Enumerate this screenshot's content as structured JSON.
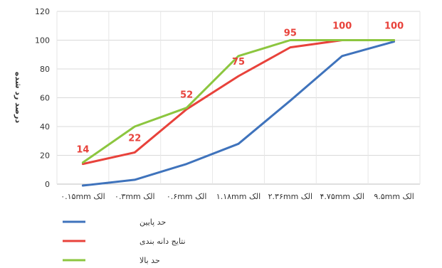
{
  "chart_data": {
    "type": "line",
    "categories": [
      "الک ۰.۱۵mm",
      "الک ۰.۳mm",
      "الک ۰.۶mm",
      "الک ۱.۱۸mm",
      "الک ۲.۳۶mm",
      "الک ۴.۷۵mm",
      "الک ۹.۵mm"
    ],
    "ylabel": "درصد رد شده",
    "ylim": [
      0,
      120
    ],
    "yticks": [
      0,
      20,
      40,
      60,
      80,
      100,
      120
    ],
    "grid": true,
    "legend_position": "bottom-left",
    "series": [
      {
        "name": "حد پایین",
        "color": "#3f73bc",
        "values": [
          -1,
          3,
          14,
          28,
          58,
          89,
          99
        ]
      },
      {
        "name": "نتایج دانه بندی",
        "color": "#e8423b",
        "values": [
          14,
          22,
          52,
          75,
          95,
          100,
          100
        ],
        "data_labels": [
          "14",
          "22",
          "52",
          "75",
          "95",
          "100",
          "100"
        ]
      },
      {
        "name": "حد بالا",
        "color": "#8cc63f",
        "values": [
          15,
          40,
          53,
          89,
          100,
          100,
          100
        ]
      }
    ]
  }
}
